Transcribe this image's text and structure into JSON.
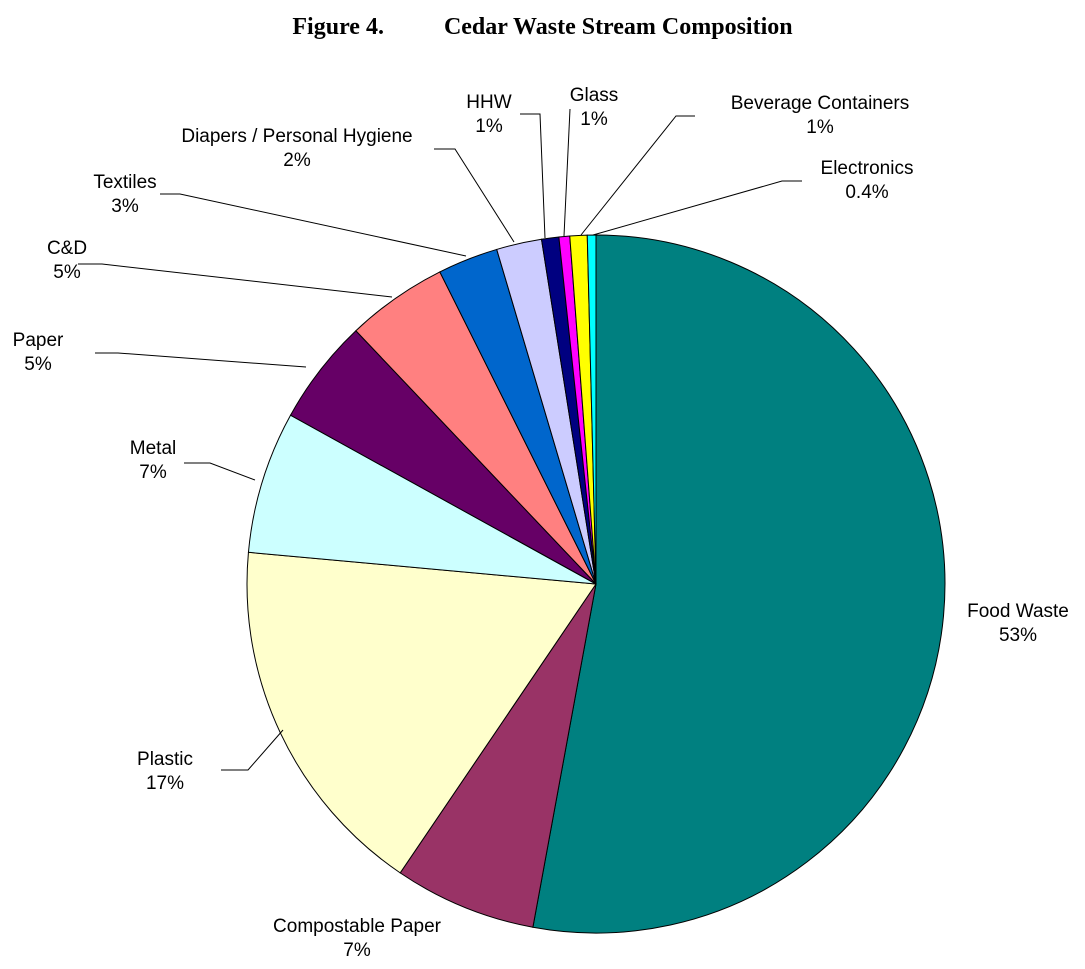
{
  "chart_data": {
    "type": "pie",
    "title": "Figure 4.          Cedar Waste Stream Composition",
    "slices": [
      {
        "label": "Food Waste",
        "pct_label": "53%",
        "value": 53.0,
        "color": "#008080"
      },
      {
        "label": "Compostable Paper",
        "pct_label": "7%",
        "value": 6.6,
        "color": "#993366"
      },
      {
        "label": "Plastic",
        "pct_label": "17%",
        "value": 17.0,
        "color": "#FFFFCC"
      },
      {
        "label": "Metal",
        "pct_label": "7%",
        "value": 6.6,
        "color": "#CCFFFF"
      },
      {
        "label": "Paper",
        "pct_label": "5%",
        "value": 4.9,
        "color": "#660066"
      },
      {
        "label": "C&D",
        "pct_label": "5%",
        "value": 4.7,
        "color": "#FF8080"
      },
      {
        "label": "Textiles",
        "pct_label": "3%",
        "value": 2.8,
        "color": "#0066CC"
      },
      {
        "label": "Diapers / Personal Hygiene",
        "pct_label": "2%",
        "value": 2.1,
        "color": "#CCCCFF"
      },
      {
        "label": "HHW",
        "pct_label": "1%",
        "value": 0.8,
        "color": "#000080"
      },
      {
        "label": "Glass",
        "pct_label": "1%",
        "value": 0.5,
        "color": "#FF00FF"
      },
      {
        "label": "Beverage Containers",
        "pct_label": "1%",
        "value": 0.8,
        "color": "#FFFF00"
      },
      {
        "label": "Electronics",
        "pct_label": "0.4%",
        "value": 0.4,
        "color": "#00FFFF"
      }
    ]
  }
}
